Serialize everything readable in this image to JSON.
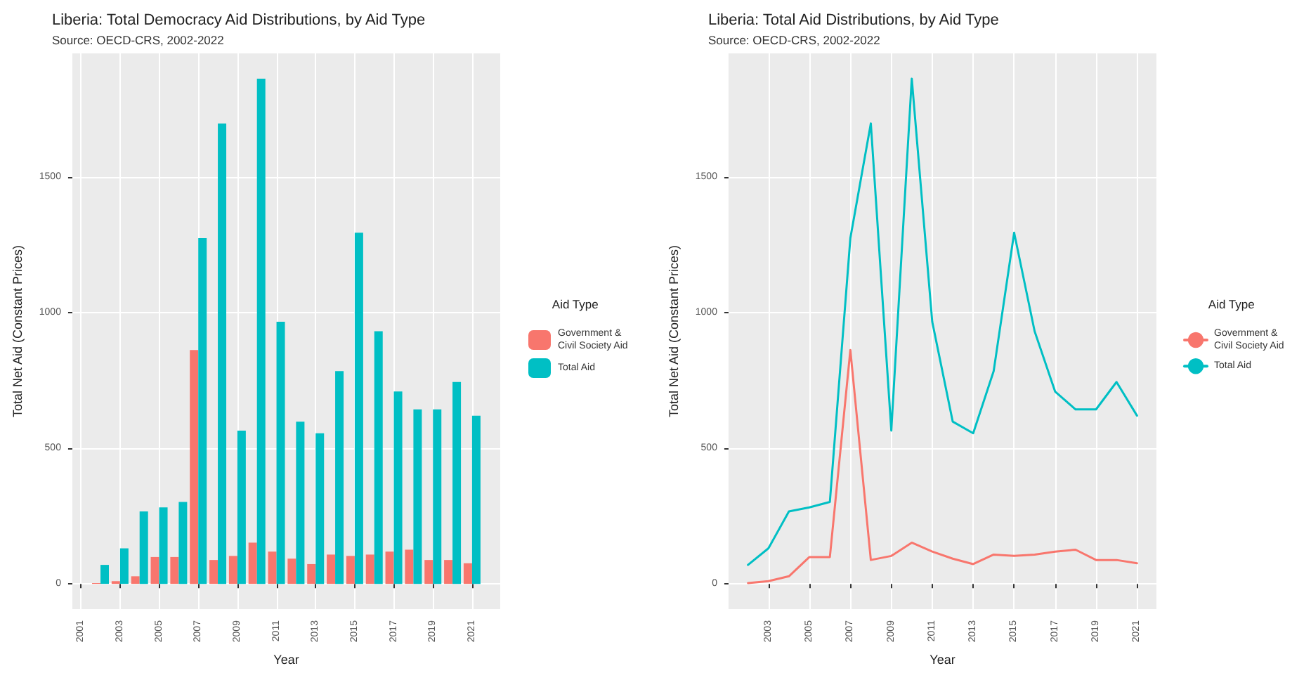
{
  "chart_data": [
    {
      "type": "bar",
      "title": "Liberia: Total Democracy Aid Distributions, by Aid Type",
      "subtitle": "Source: OECD-CRS, 2002-2022",
      "xlabel": "Year",
      "ylabel": "Total Net Aid (Constant Prices)",
      "legend_title": "Aid Type",
      "legend": "right",
      "grid": true,
      "x": [
        2002,
        2003,
        2004,
        2005,
        2006,
        2007,
        2008,
        2009,
        2010,
        2011,
        2012,
        2013,
        2014,
        2015,
        2016,
        2017,
        2018,
        2019,
        2020,
        2021
      ],
      "series": [
        {
          "name": "Government & Civil Society Aid",
          "color": "#f8766d",
          "values": [
            3,
            10,
            28,
            99,
            99,
            862,
            88,
            103,
            152,
            119,
            93,
            73,
            108,
            103,
            108,
            119,
            126,
            88,
            88,
            76
          ]
        },
        {
          "name": "Total Aid",
          "color": "#00bfc4",
          "values": [
            70,
            131,
            267,
            282,
            302,
            1274,
            1697,
            565,
            1862,
            966,
            598,
            555,
            784,
            1294,
            931,
            709,
            643,
            643,
            744,
            620
          ]
        }
      ],
      "xlim": [
        2000.56,
        2022.44
      ],
      "xticks": [
        2001,
        2003,
        2005,
        2007,
        2009,
        2011,
        2013,
        2015,
        2017,
        2019,
        2021
      ],
      "ylim": [
        -93,
        1955
      ],
      "yticks": [
        0,
        500,
        1000,
        1500
      ]
    },
    {
      "type": "line",
      "title": "Liberia: Total Aid Distributions, by Aid Type",
      "subtitle": "Source: OECD-CRS, 2002-2022",
      "xlabel": "Year",
      "ylabel": "Total Net Aid (Constant Prices)",
      "legend_title": "Aid Type",
      "legend": "right",
      "grid": true,
      "marker": "none",
      "line_style": "solid",
      "x": [
        2002,
        2003,
        2004,
        2005,
        2006,
        2007,
        2008,
        2009,
        2010,
        2011,
        2012,
        2013,
        2014,
        2015,
        2016,
        2017,
        2018,
        2019,
        2020,
        2021
      ],
      "series": [
        {
          "name": "Government & Civil Society Aid",
          "color": "#f8766d",
          "values": [
            3,
            10,
            28,
            99,
            99,
            862,
            88,
            103,
            152,
            119,
            93,
            73,
            108,
            103,
            108,
            119,
            126,
            88,
            88,
            76
          ]
        },
        {
          "name": "Total Aid",
          "color": "#00bfc4",
          "values": [
            70,
            131,
            267,
            282,
            302,
            1274,
            1697,
            565,
            1862,
            966,
            598,
            555,
            784,
            1294,
            931,
            709,
            643,
            643,
            744,
            620
          ]
        }
      ],
      "xlim": [
        2001.05,
        2021.95
      ],
      "xticks": [
        2003,
        2005,
        2007,
        2009,
        2011,
        2013,
        2015,
        2017,
        2019,
        2021
      ],
      "ylim": [
        -93,
        1955
      ],
      "yticks": [
        0,
        500,
        1000,
        1500
      ]
    }
  ]
}
